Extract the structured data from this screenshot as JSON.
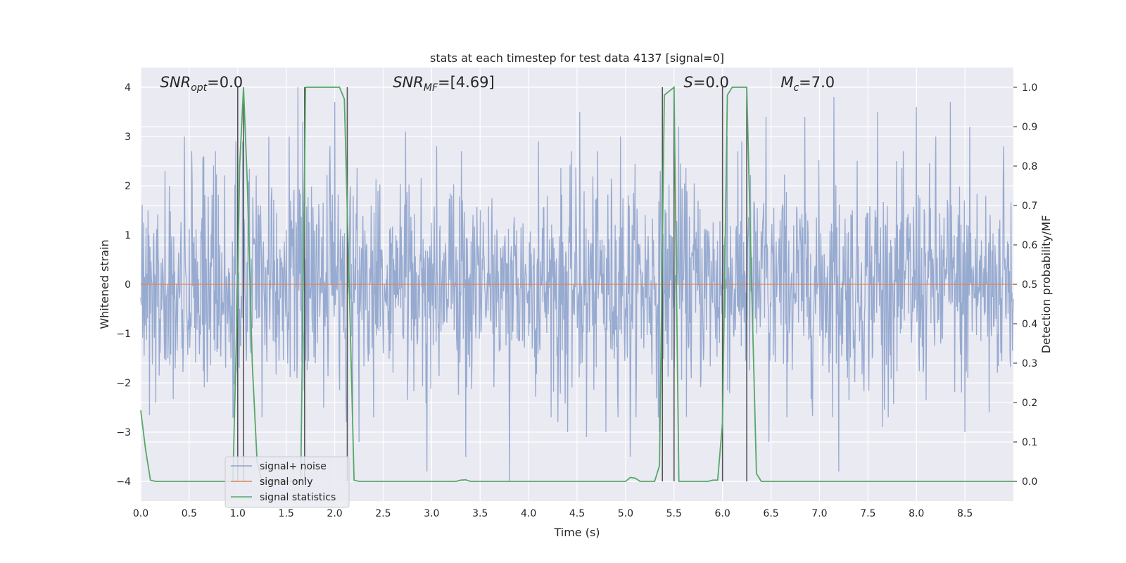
{
  "chart_data": {
    "type": "line",
    "title": "stats at each timestep for test data 4137 [signal=0]",
    "xlabel": "Time (s)",
    "ylabel": "Whitened strain",
    "ylabel_right": "Detection probability/MF",
    "xlim": [
      0.0,
      9.0
    ],
    "ylim": [
      -4.4,
      4.4
    ],
    "ylim_right": [
      -0.05,
      1.05
    ],
    "x_ticks": [
      "0.0",
      "0.5",
      "1.0",
      "1.5",
      "2.0",
      "2.5",
      "3.0",
      "3.5",
      "4.0",
      "4.5",
      "5.0",
      "5.5",
      "6.0",
      "6.5",
      "7.0",
      "7.5",
      "8.0",
      "8.5"
    ],
    "y_ticks_left": [
      "4",
      "3",
      "2",
      "1",
      "0",
      "−1",
      "−2",
      "−3",
      "−4"
    ],
    "y_ticks_right": [
      "1.0",
      "0.9",
      "0.8",
      "0.7",
      "0.6",
      "0.5",
      "0.4",
      "0.3",
      "0.2",
      "0.1",
      "0.0"
    ],
    "grid": true,
    "legend_position": "lower-left",
    "annotations": [
      {
        "x": 0.2,
        "text": "SNR_opt=0.0"
      },
      {
        "x": 2.6,
        "text": "SNR_MF=[4.69]"
      },
      {
        "x": 5.6,
        "text": "S=0.0"
      },
      {
        "x": 6.6,
        "text": "M_c=7.0"
      }
    ],
    "vertical_lines_x": [
      1.0,
      1.06,
      1.69,
      2.13,
      5.38,
      5.5,
      6.0,
      6.25
    ],
    "series": [
      {
        "name": "signal+ noise",
        "color": "#8ea3cc",
        "axis": "left",
        "style": "whitened noise, amplitude up to about ±4, duration 9 s",
        "spikes": [
          [
            0.45,
            3.0
          ],
          [
            0.25,
            2.3
          ],
          [
            0.65,
            2.6
          ],
          [
            0.98,
            2.9
          ],
          [
            1.05,
            2.9
          ],
          [
            1.32,
            3.0
          ],
          [
            1.53,
            3.0
          ],
          [
            1.62,
            4.0
          ],
          [
            1.67,
            3.3
          ],
          [
            1.95,
            2.8
          ],
          [
            2.0,
            3.7
          ],
          [
            2.12,
            -2.8
          ],
          [
            2.25,
            -3.2
          ],
          [
            2.4,
            -2.7
          ],
          [
            2.73,
            3.1
          ],
          [
            2.95,
            -3.8
          ],
          [
            3.05,
            2.8
          ],
          [
            3.35,
            -3.5
          ],
          [
            3.8,
            -4.0
          ],
          [
            4.1,
            2.9
          ],
          [
            4.3,
            -2.8
          ],
          [
            4.4,
            -3.0
          ],
          [
            4.53,
            3.5
          ],
          [
            4.6,
            -3.1
          ],
          [
            4.95,
            3.0
          ],
          [
            4.8,
            -3.0
          ],
          [
            5.05,
            -3.5
          ],
          [
            5.35,
            -3.0
          ],
          [
            5.55,
            3.2
          ],
          [
            6.05,
            3.0
          ],
          [
            6.2,
            2.9
          ],
          [
            6.45,
            3.4
          ],
          [
            6.48,
            -3.2
          ],
          [
            6.85,
            3.4
          ],
          [
            7.15,
            3.8
          ],
          [
            7.2,
            -3.8
          ],
          [
            7.6,
            3.5
          ],
          [
            7.65,
            -2.9
          ],
          [
            8.0,
            3.6
          ],
          [
            8.2,
            3.0
          ],
          [
            8.35,
            3.7
          ],
          [
            8.5,
            -3.0
          ],
          [
            8.55,
            3.2
          ],
          [
            8.75,
            -2.6
          ],
          [
            8.9,
            2.8
          ]
        ]
      },
      {
        "name": "signal only",
        "color": "#dd8452",
        "axis": "left",
        "x": [
          0.0,
          9.0
        ],
        "y": [
          0.0,
          0.0
        ]
      },
      {
        "name": "signal statistics",
        "color": "#55a868",
        "axis": "right",
        "x": [
          0.0,
          0.05,
          0.1,
          0.15,
          0.5,
          0.9,
          0.95,
          1.0,
          1.02,
          1.06,
          1.1,
          1.15,
          1.2,
          1.25,
          1.65,
          1.7,
          1.75,
          1.8,
          1.85,
          1.9,
          1.95,
          2.0,
          2.05,
          2.1,
          2.15,
          2.2,
          2.25,
          3.25,
          3.3,
          3.35,
          3.4,
          3.45,
          5.0,
          5.05,
          5.1,
          5.15,
          5.2,
          5.25,
          5.3,
          5.35,
          5.4,
          5.45,
          5.5,
          5.55,
          5.6,
          5.8,
          5.85,
          5.9,
          5.95,
          6.0,
          6.05,
          6.1,
          6.15,
          6.2,
          6.25,
          6.3,
          6.35,
          6.4,
          6.45,
          9.0
        ],
        "y": [
          0.18,
          0.08,
          0.003,
          0.0,
          0.0,
          0.0,
          0.0,
          0.5,
          0.8,
          1.0,
          0.75,
          0.3,
          0.05,
          0.0,
          0.0,
          1.0,
          1.0,
          1.0,
          1.0,
          1.0,
          1.0,
          1.0,
          1.0,
          0.97,
          0.5,
          0.003,
          0.0,
          0.0,
          0.003,
          0.004,
          0.0,
          0.0,
          0.0,
          0.01,
          0.008,
          0.0,
          0.0,
          0.0,
          0.0,
          0.04,
          0.98,
          0.99,
          1.0,
          0.0,
          0.0,
          0.0,
          0.0,
          0.003,
          0.003,
          0.15,
          0.98,
          1.0,
          1.0,
          1.0,
          1.0,
          0.5,
          0.02,
          0.0,
          0.0,
          0.0
        ]
      }
    ]
  }
}
